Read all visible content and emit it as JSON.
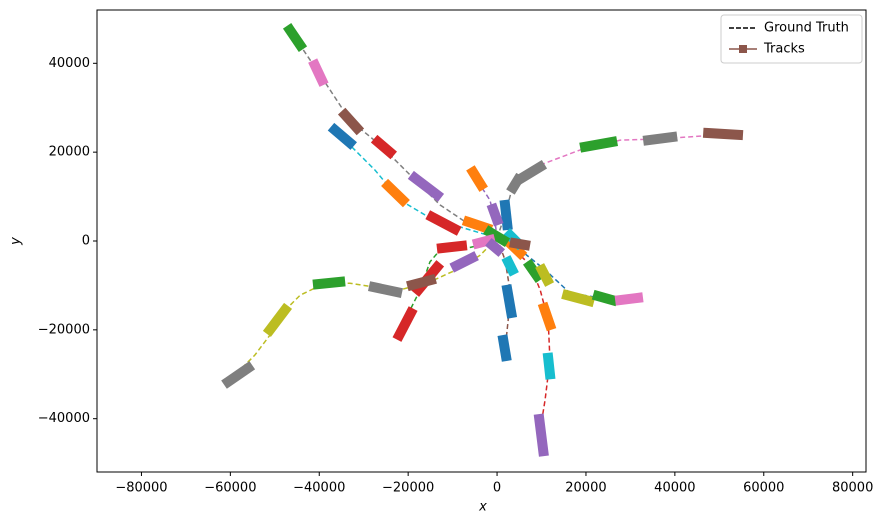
{
  "chart_data": {
    "type": "trajectory",
    "x_label": "x",
    "y_label": "y",
    "xlim": [
      -90000,
      83000
    ],
    "ylim": [
      -52000,
      52000
    ],
    "xticks": [
      {
        "value": -80000,
        "label": "−80000"
      },
      {
        "value": -60000,
        "label": "−60000"
      },
      {
        "value": -40000,
        "label": "−40000"
      },
      {
        "value": -20000,
        "label": "−20000"
      },
      0,
      20000,
      40000,
      60000,
      80000
    ],
    "yticks": [
      {
        "value": -40000,
        "label": "−40000"
      },
      {
        "value": -20000,
        "label": "−20000"
      },
      0,
      20000,
      40000
    ],
    "legend": {
      "position": "upper right",
      "entries": [
        {
          "label": "Ground Truth",
          "color": "#000000",
          "style": "dashed"
        },
        {
          "label": "Tracks",
          "color": "#8c564b",
          "marker": "square"
        }
      ]
    },
    "ground_truth": [
      {
        "color": "#7f7f7f",
        "x": [
          -46600,
          -39800,
          -33100,
          -26300,
          -19600,
          -12800,
          -6100,
          0
        ],
        "y": [
          47500,
          37400,
          27200,
          21600,
          14900,
          8100,
          3600,
          700
        ]
      },
      {
        "color": "#17becf",
        "x": [
          -36500,
          -33100,
          -27500,
          -21800,
          -15100,
          -6100,
          0
        ],
        "y": [
          25000,
          21600,
          16000,
          9200,
          5200,
          2500,
          700
        ]
      },
      {
        "color": "#7f7f7f",
        "x": [
          0,
          1800,
          3600,
          7400,
          9700
        ],
        "y": [
          700,
          5900,
          12600,
          15500,
          17100
        ]
      },
      {
        "color": "#e377c2",
        "x": [
          9700,
          18700,
          27700,
          36700,
          45700,
          54700
        ],
        "y": [
          17100,
          20500,
          22700,
          23000,
          23600,
          24100
        ]
      },
      {
        "color": "#2ca02c",
        "x": [
          0,
          -3800,
          -8300,
          -12800,
          -15100,
          -17300,
          -20700,
          -21800
        ],
        "y": [
          700,
          -900,
          -2000,
          -2000,
          -4700,
          -11000,
          -17800,
          -21200
        ]
      },
      {
        "color": "#bcbd22",
        "x": [
          0,
          -3800,
          -8300,
          -15100,
          -21800,
          -27500,
          -33100,
          -38700,
          -44300,
          -48800,
          -51100,
          -54500,
          -60100
        ],
        "y": [
          700,
          -3200,
          -6100,
          -9200,
          -11000,
          -10400,
          -9500,
          -9500,
          -12200,
          -16700,
          -21200,
          -25700,
          -31300
        ]
      },
      {
        "color": "#1f77b4",
        "x": [
          0,
          5200,
          10800,
          16400,
          23200,
          29900
        ],
        "y": [
          700,
          -2000,
          -6500,
          -11700,
          -12800,
          -13300
        ]
      },
      {
        "color": "#8c564b",
        "x": [
          0,
          1800,
          2900,
          2500,
          1800
        ],
        "y": [
          700,
          -4300,
          -11000,
          -17800,
          -24500
        ]
      },
      {
        "color": "#d62728",
        "x": [
          2900,
          7400,
          9700,
          11500,
          11900,
          10800,
          9700,
          9700
        ],
        "y": [
          -900,
          -5400,
          -11000,
          -17800,
          -26800,
          -35800,
          -42600,
          -47500
        ]
      },
      {
        "color": "#9467bd",
        "x": [
          0,
          -500,
          -1600,
          -3800,
          -5000
        ],
        "y": [
          700,
          4700,
          9200,
          12600,
          15500
        ]
      }
    ],
    "tracks": [
      {
        "color": "#2ca02c",
        "x": [
          -46600,
          -44300
        ],
        "y": [
          47500,
          44100
        ]
      },
      {
        "color": "#e377c2",
        "x": [
          -41000,
          -39400
        ],
        "y": [
          39600,
          36200
        ]
      },
      {
        "color": "#8c564b",
        "x": [
          -34200,
          -31500
        ],
        "y": [
          28400,
          25400
        ]
      },
      {
        "color": "#d62728",
        "x": [
          -26800,
          -24100
        ],
        "y": [
          22300,
          20000
        ]
      },
      {
        "color": "#9467bd",
        "x": [
          -18500,
          -13500
        ],
        "y": [
          14200,
          10400
        ]
      },
      {
        "color": "#1f77b4",
        "x": [
          -36500,
          -33100
        ],
        "y": [
          25000,
          22100
        ]
      },
      {
        "color": "#ff7f0e",
        "x": [
          -24500,
          -21200
        ],
        "y": [
          12400,
          9200
        ]
      },
      {
        "color": "#d62728",
        "x": [
          -14600,
          -9500
        ],
        "y": [
          5400,
          2700
        ]
      },
      {
        "color": "#ff7f0e",
        "x": [
          -6500,
          -2300
        ],
        "y": [
          4300,
          2900
        ]
      },
      {
        "color": "#7f7f7f",
        "x": [
          3600,
          4700
        ],
        "y": [
          12000,
          13800
        ]
      },
      {
        "color": "#7f7f7f",
        "x": [
          5600,
          9700
        ],
        "y": [
          14200,
          16700
        ]
      },
      {
        "color": "#2ca02c",
        "x": [
          19800,
          25900
        ],
        "y": [
          21200,
          22300
        ]
      },
      {
        "color": "#7f7f7f",
        "x": [
          34000,
          39400
        ],
        "y": [
          22700,
          23400
        ]
      },
      {
        "color": "#8c564b",
        "x": [
          47500,
          54200
        ],
        "y": [
          24300,
          23900
        ]
      },
      {
        "color": "#d62728",
        "x": [
          -12400,
          -7900
        ],
        "y": [
          -1600,
          -1100
        ]
      },
      {
        "color": "#d62728",
        "x": [
          -17700,
          -13500
        ],
        "y": [
          -11000,
          -5900
        ]
      },
      {
        "color": "#d62728",
        "x": [
          -22000,
          -19400
        ],
        "y": [
          -21200,
          -16200
        ]
      },
      {
        "color": "#9467bd",
        "x": [
          -9200,
          -5600
        ],
        "y": [
          -5600,
          -3800
        ]
      },
      {
        "color": "#8c564b",
        "x": [
          -19100,
          -14900
        ],
        "y": [
          -9900,
          -8800
        ]
      },
      {
        "color": "#7f7f7f",
        "x": [
          -27700,
          -22500
        ],
        "y": [
          -10400,
          -11500
        ]
      },
      {
        "color": "#2ca02c",
        "x": [
          -40300,
          -35300
        ],
        "y": [
          -9700,
          -9200
        ]
      },
      {
        "color": "#bcbd22",
        "x": [
          -51100,
          -47700
        ],
        "y": [
          -20000,
          -15500
        ]
      },
      {
        "color": "#7f7f7f",
        "x": [
          -60500,
          -56000
        ],
        "y": [
          -31700,
          -28600
        ]
      },
      {
        "color": "#2ca02c",
        "x": [
          7400,
          9000
        ],
        "y": [
          -5600,
          -7900
        ]
      },
      {
        "color": "#bcbd22",
        "x": [
          10100,
          11300
        ],
        "y": [
          -6500,
          -8800
        ]
      },
      {
        "color": "#bcbd22",
        "x": [
          15800,
          20700
        ],
        "y": [
          -12200,
          -13500
        ]
      },
      {
        "color": "#2ca02c",
        "x": [
          22700,
          25900
        ],
        "y": [
          -12400,
          -13300
        ]
      },
      {
        "color": "#e377c2",
        "x": [
          27700,
          31700
        ],
        "y": [
          -13300,
          -12800
        ]
      },
      {
        "color": "#17becf",
        "x": [
          2500,
          3400
        ],
        "y": [
          -4700,
          -6500
        ]
      },
      {
        "color": "#1f77b4",
        "x": [
          2300,
          3200
        ],
        "y": [
          -11000,
          -16200
        ]
      },
      {
        "color": "#1f77b4",
        "x": [
          1400,
          2000
        ],
        "y": [
          -22300,
          -25900
        ]
      },
      {
        "color": "#ff7f0e",
        "x": [
          2900,
          5200
        ],
        "y": [
          -500,
          -2700
        ]
      },
      {
        "color": "#ff7f0e",
        "x": [
          10600,
          11900
        ],
        "y": [
          -15100,
          -18900
        ]
      },
      {
        "color": "#17becf",
        "x": [
          11500,
          11900
        ],
        "y": [
          -26300,
          -30000
        ]
      },
      {
        "color": "#9467bd",
        "x": [
          9500,
          10400
        ],
        "y": [
          -40100,
          -47300
        ]
      },
      {
        "color": "#1f77b4",
        "x": [
          1800,
          2300
        ],
        "y": [
          8100,
          3600
        ]
      },
      {
        "color": "#ff7f0e",
        "x": [
          -5400,
          -3600
        ],
        "y": [
          15500,
          12600
        ]
      },
      {
        "color": "#9467bd",
        "x": [
          -900,
          0
        ],
        "y": [
          7200,
          4700
        ]
      },
      {
        "color": "#17becf",
        "x": [
          2900,
          4700
        ],
        "y": [
          1300,
          -500
        ]
      },
      {
        "color": "#2ca02c",
        "x": [
          -1600,
          1400
        ],
        "y": [
          2000,
          200
        ]
      },
      {
        "color": "#e377c2",
        "x": [
          -4300,
          -1600
        ],
        "y": [
          -500,
          200
        ]
      },
      {
        "color": "#9467bd",
        "x": [
          -1100,
          200
        ],
        "y": [
          -900,
          -2000
        ]
      },
      {
        "color": "#8c564b",
        "x": [
          4000,
          6300
        ],
        "y": [
          -500,
          -900
        ]
      }
    ]
  }
}
